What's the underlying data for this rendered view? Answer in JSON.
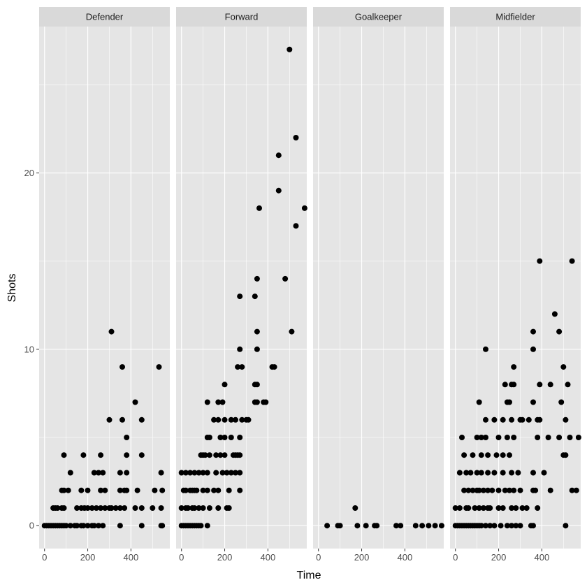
{
  "chart_data": {
    "type": "scatter",
    "facet_layout": "1 row x 4 columns",
    "xlabel": "Time",
    "ylabel": "Shots",
    "xlim": [
      -25,
      580
    ],
    "ylim": [
      -1.3,
      28.3
    ],
    "x_ticks": [
      0,
      200,
      400
    ],
    "x_tick_labels": [
      "0",
      "200",
      "400"
    ],
    "y_ticks": [
      0,
      10,
      20
    ],
    "y_tick_labels": [
      "0",
      "10",
      "20"
    ],
    "grid": true,
    "colors": {
      "panel_bg": "#e5e5e5",
      "strip_bg": "#d9d9d9",
      "grid": "#ffffff",
      "point": "#000000",
      "tick": "#333333"
    },
    "panels": [
      {
        "name": "Defender",
        "points": [
          [
            0,
            0
          ],
          [
            10,
            0
          ],
          [
            20,
            0
          ],
          [
            30,
            0
          ],
          [
            40,
            0
          ],
          [
            50,
            0
          ],
          [
            60,
            0
          ],
          [
            70,
            0
          ],
          [
            80,
            0
          ],
          [
            90,
            0
          ],
          [
            100,
            0
          ],
          [
            120,
            0
          ],
          [
            140,
            0
          ],
          [
            150,
            0
          ],
          [
            170,
            0
          ],
          [
            180,
            0
          ],
          [
            200,
            0
          ],
          [
            220,
            0
          ],
          [
            230,
            0
          ],
          [
            250,
            0
          ],
          [
            270,
            0
          ],
          [
            350,
            0
          ],
          [
            450,
            0
          ],
          [
            540,
            0
          ],
          [
            545,
            0
          ],
          [
            40,
            1
          ],
          [
            50,
            1
          ],
          [
            60,
            1
          ],
          [
            80,
            1
          ],
          [
            90,
            1
          ],
          [
            150,
            1
          ],
          [
            170,
            1
          ],
          [
            185,
            1
          ],
          [
            200,
            1
          ],
          [
            220,
            1
          ],
          [
            240,
            1
          ],
          [
            260,
            1
          ],
          [
            280,
            1
          ],
          [
            300,
            1
          ],
          [
            310,
            1
          ],
          [
            330,
            1
          ],
          [
            350,
            1
          ],
          [
            370,
            1
          ],
          [
            420,
            1
          ],
          [
            450,
            1
          ],
          [
            500,
            1
          ],
          [
            540,
            1
          ],
          [
            80,
            2
          ],
          [
            90,
            2
          ],
          [
            110,
            2
          ],
          [
            170,
            2
          ],
          [
            200,
            2
          ],
          [
            260,
            2
          ],
          [
            280,
            2
          ],
          [
            350,
            2
          ],
          [
            370,
            2
          ],
          [
            380,
            2
          ],
          [
            430,
            2
          ],
          [
            510,
            2
          ],
          [
            545,
            2
          ],
          [
            120,
            3
          ],
          [
            230,
            3
          ],
          [
            250,
            3
          ],
          [
            270,
            3
          ],
          [
            350,
            3
          ],
          [
            380,
            3
          ],
          [
            540,
            3
          ],
          [
            90,
            4
          ],
          [
            180,
            4
          ],
          [
            260,
            4
          ],
          [
            380,
            4
          ],
          [
            450,
            4
          ],
          [
            380,
            5
          ],
          [
            300,
            6
          ],
          [
            360,
            6
          ],
          [
            450,
            6
          ],
          [
            420,
            7
          ],
          [
            360,
            9
          ],
          [
            530,
            9
          ],
          [
            310,
            11
          ]
        ]
      },
      {
        "name": "Forward",
        "points": [
          [
            0,
            0
          ],
          [
            10,
            0
          ],
          [
            20,
            0
          ],
          [
            30,
            0
          ],
          [
            40,
            0
          ],
          [
            50,
            0
          ],
          [
            60,
            0
          ],
          [
            70,
            0
          ],
          [
            80,
            0
          ],
          [
            90,
            0
          ],
          [
            120,
            0
          ],
          [
            0,
            1
          ],
          [
            20,
            1
          ],
          [
            30,
            1
          ],
          [
            50,
            1
          ],
          [
            60,
            1
          ],
          [
            80,
            1
          ],
          [
            100,
            1
          ],
          [
            130,
            1
          ],
          [
            170,
            1
          ],
          [
            210,
            1
          ],
          [
            220,
            1
          ],
          [
            10,
            2
          ],
          [
            20,
            2
          ],
          [
            40,
            2
          ],
          [
            50,
            2
          ],
          [
            60,
            2
          ],
          [
            70,
            2
          ],
          [
            100,
            2
          ],
          [
            120,
            2
          ],
          [
            150,
            2
          ],
          [
            170,
            2
          ],
          [
            220,
            2
          ],
          [
            270,
            2
          ],
          [
            0,
            3
          ],
          [
            20,
            3
          ],
          [
            40,
            3
          ],
          [
            60,
            3
          ],
          [
            80,
            3
          ],
          [
            100,
            3
          ],
          [
            120,
            3
          ],
          [
            160,
            3
          ],
          [
            190,
            3
          ],
          [
            210,
            3
          ],
          [
            230,
            3
          ],
          [
            250,
            3
          ],
          [
            270,
            3
          ],
          [
            90,
            4
          ],
          [
            100,
            4
          ],
          [
            110,
            4
          ],
          [
            130,
            4
          ],
          [
            160,
            4
          ],
          [
            180,
            4
          ],
          [
            200,
            4
          ],
          [
            240,
            4
          ],
          [
            250,
            4
          ],
          [
            260,
            4
          ],
          [
            270,
            4
          ],
          [
            120,
            5
          ],
          [
            130,
            5
          ],
          [
            180,
            5
          ],
          [
            200,
            5
          ],
          [
            230,
            5
          ],
          [
            270,
            5
          ],
          [
            150,
            6
          ],
          [
            170,
            6
          ],
          [
            200,
            6
          ],
          [
            230,
            6
          ],
          [
            250,
            6
          ],
          [
            280,
            6
          ],
          [
            300,
            6
          ],
          [
            310,
            6
          ],
          [
            120,
            7
          ],
          [
            170,
            7
          ],
          [
            190,
            7
          ],
          [
            340,
            7
          ],
          [
            350,
            7
          ],
          [
            380,
            7
          ],
          [
            390,
            7
          ],
          [
            200,
            8
          ],
          [
            340,
            8
          ],
          [
            350,
            8
          ],
          [
            260,
            9
          ],
          [
            280,
            9
          ],
          [
            420,
            9
          ],
          [
            430,
            9
          ],
          [
            350,
            10
          ],
          [
            270,
            10
          ],
          [
            350,
            11
          ],
          [
            510,
            11
          ],
          [
            270,
            13
          ],
          [
            340,
            13
          ],
          [
            350,
            14
          ],
          [
            480,
            14
          ],
          [
            530,
            17
          ],
          [
            360,
            18
          ],
          [
            570,
            18
          ],
          [
            450,
            19
          ],
          [
            450,
            21
          ],
          [
            530,
            22
          ],
          [
            500,
            27
          ]
        ]
      },
      {
        "name": "Goalkeeper",
        "points": [
          [
            40,
            0
          ],
          [
            90,
            0
          ],
          [
            100,
            0
          ],
          [
            180,
            0
          ],
          [
            220,
            0
          ],
          [
            260,
            0
          ],
          [
            270,
            0
          ],
          [
            360,
            0
          ],
          [
            380,
            0
          ],
          [
            450,
            0
          ],
          [
            480,
            0
          ],
          [
            510,
            0
          ],
          [
            540,
            0
          ],
          [
            570,
            0
          ],
          [
            170,
            1
          ]
        ]
      },
      {
        "name": "Midfielder",
        "points": [
          [
            0,
            0
          ],
          [
            10,
            0
          ],
          [
            20,
            0
          ],
          [
            30,
            0
          ],
          [
            40,
            0
          ],
          [
            50,
            0
          ],
          [
            60,
            0
          ],
          [
            70,
            0
          ],
          [
            80,
            0
          ],
          [
            90,
            0
          ],
          [
            100,
            0
          ],
          [
            110,
            0
          ],
          [
            120,
            0
          ],
          [
            140,
            0
          ],
          [
            160,
            0
          ],
          [
            180,
            0
          ],
          [
            210,
            0
          ],
          [
            240,
            0
          ],
          [
            260,
            0
          ],
          [
            280,
            0
          ],
          [
            300,
            0
          ],
          [
            350,
            0
          ],
          [
            360,
            0
          ],
          [
            510,
            0
          ],
          [
            0,
            1
          ],
          [
            20,
            1
          ],
          [
            50,
            1
          ],
          [
            60,
            1
          ],
          [
            90,
            1
          ],
          [
            110,
            1
          ],
          [
            130,
            1
          ],
          [
            150,
            1
          ],
          [
            160,
            1
          ],
          [
            200,
            1
          ],
          [
            220,
            1
          ],
          [
            260,
            1
          ],
          [
            280,
            1
          ],
          [
            310,
            1
          ],
          [
            330,
            1
          ],
          [
            380,
            1
          ],
          [
            40,
            2
          ],
          [
            60,
            2
          ],
          [
            80,
            2
          ],
          [
            100,
            2
          ],
          [
            110,
            2
          ],
          [
            130,
            2
          ],
          [
            150,
            2
          ],
          [
            170,
            2
          ],
          [
            200,
            2
          ],
          [
            230,
            2
          ],
          [
            250,
            2
          ],
          [
            270,
            2
          ],
          [
            300,
            2
          ],
          [
            360,
            2
          ],
          [
            370,
            2
          ],
          [
            440,
            2
          ],
          [
            540,
            2
          ],
          [
            560,
            2
          ],
          [
            20,
            3
          ],
          [
            50,
            3
          ],
          [
            70,
            3
          ],
          [
            100,
            3
          ],
          [
            120,
            3
          ],
          [
            150,
            3
          ],
          [
            180,
            3
          ],
          [
            220,
            3
          ],
          [
            260,
            3
          ],
          [
            290,
            3
          ],
          [
            360,
            3
          ],
          [
            410,
            3
          ],
          [
            40,
            4
          ],
          [
            80,
            4
          ],
          [
            120,
            4
          ],
          [
            150,
            4
          ],
          [
            190,
            4
          ],
          [
            220,
            4
          ],
          [
            250,
            4
          ],
          [
            500,
            4
          ],
          [
            510,
            4
          ],
          [
            30,
            5
          ],
          [
            100,
            5
          ],
          [
            120,
            5
          ],
          [
            140,
            5
          ],
          [
            200,
            5
          ],
          [
            240,
            5
          ],
          [
            270,
            5
          ],
          [
            380,
            5
          ],
          [
            430,
            5
          ],
          [
            480,
            5
          ],
          [
            530,
            5
          ],
          [
            570,
            5
          ],
          [
            140,
            6
          ],
          [
            180,
            6
          ],
          [
            220,
            6
          ],
          [
            260,
            6
          ],
          [
            300,
            6
          ],
          [
            310,
            6
          ],
          [
            340,
            6
          ],
          [
            380,
            6
          ],
          [
            390,
            6
          ],
          [
            510,
            6
          ],
          [
            110,
            7
          ],
          [
            240,
            7
          ],
          [
            250,
            7
          ],
          [
            360,
            7
          ],
          [
            490,
            7
          ],
          [
            230,
            8
          ],
          [
            260,
            8
          ],
          [
            270,
            8
          ],
          [
            390,
            8
          ],
          [
            440,
            8
          ],
          [
            520,
            8
          ],
          [
            270,
            9
          ],
          [
            500,
            9
          ],
          [
            140,
            10
          ],
          [
            360,
            10
          ],
          [
            360,
            11
          ],
          [
            480,
            11
          ],
          [
            460,
            12
          ],
          [
            390,
            15
          ],
          [
            540,
            15
          ]
        ]
      }
    ]
  }
}
